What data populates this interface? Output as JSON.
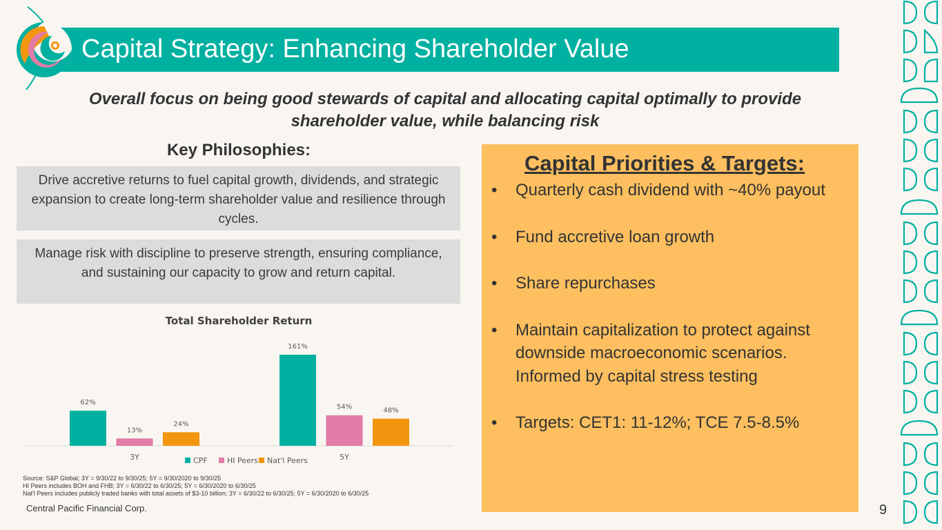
{
  "header": {
    "title": "Capital Strategy: Enhancing Shareholder Value"
  },
  "subtitle": "Overall focus on being good stewards of capital and allocating capital optimally to provide shareholder value, while balancing risk",
  "key_philosophies": {
    "heading": "Key Philosophies:",
    "items": [
      "Drive accretive returns to fuel capital growth, dividends, and strategic expansion to create long-term shareholder value and resilience through cycles.",
      "Manage risk with discipline to preserve strength, ensuring compliance, and sustaining our capacity to grow and return capital."
    ]
  },
  "capital_priorities": {
    "title": "Capital Priorities & Targets:",
    "bullet": "•",
    "items": [
      "Quarterly cash dividend with ~40% payout",
      "Fund accretive loan growth",
      "Share repurchases",
      "Maintain capitalization to protect against downside macroeconomic scenarios. Informed by capital stress testing",
      "Targets: CET1: 11-12%; TCE 7.5-8.5%"
    ]
  },
  "chart_data": {
    "type": "bar",
    "title": "Total Shareholder Return",
    "categories": [
      "3Y",
      "5Y"
    ],
    "series": [
      {
        "name": "CPF",
        "values": [
          62,
          161
        ],
        "labels": [
          "62%",
          "161%"
        ],
        "color": "#00b0a0"
      },
      {
        "name": "HI Peers",
        "values": [
          13,
          54
        ],
        "labels": [
          "13%",
          "54%"
        ],
        "color": "#e17ba8"
      },
      {
        "name": "Nat'l Peers",
        "values": [
          24,
          48
        ],
        "labels": [
          "24%",
          "48%"
        ],
        "color": "#f3960f"
      }
    ],
    "ylim": [
      0,
      161
    ],
    "legend": "bottom",
    "grid": false
  },
  "source_notes": [
    "Source: S&P Global; 3Y = 9/30/22 to 9/30/25; 5Y = 9/30/2020 to 9/30/25",
    "HI Peers includes BOH and FHB; 3Y = 6/30/22 to 6/30/25; 5Y = 6/30/2020 to 6/30/25",
    "Nat'l Peers includes publicly traded banks with total assets of $3-10 billion; 3Y = 6/30/22 to 6/30/25; 5Y = 6/30/2020 to 6/30/25"
  ],
  "footer": {
    "company": "Central Pacific Financial Corp.",
    "page_number": "9"
  },
  "colors": {
    "teal": "#00b0a0",
    "orange_panel": "#fdbf5f",
    "gray_box": "#dcdcdc",
    "background": "#f9f6f2"
  }
}
